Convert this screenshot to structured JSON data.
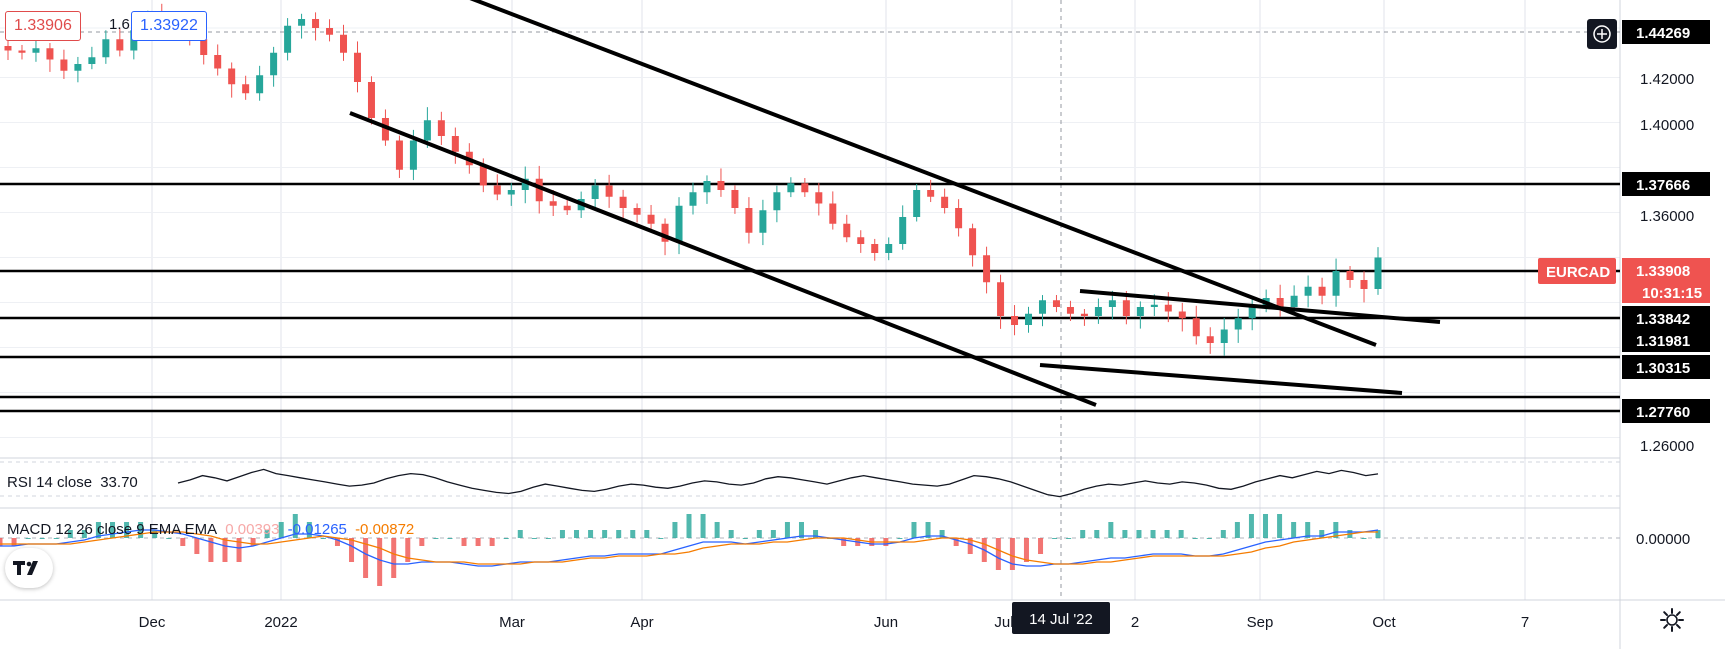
{
  "header": {
    "bid_price": "1.33906",
    "spread": "1.6",
    "ask_price": "1.33922"
  },
  "symbol": "EURCAD",
  "countdown": "10:31:15",
  "crosshair_date": "14 Jul '22",
  "rsi_legend": {
    "label": "RSI 14 close",
    "value": "33.70"
  },
  "macd_legend": {
    "label": "MACD 12 26 close 9 EMA EMA",
    "hist": "0.00393",
    "macd": "-0.01265",
    "signal": "-0.00872"
  },
  "colors": {
    "up": "#26a69a",
    "down": "#ef5350",
    "line": "#131722",
    "macd_line": "#2962ff",
    "signal_line": "#f57c00",
    "hist_pos": "#26a69a",
    "hist_neg": "#ef5350"
  },
  "chart_data": {
    "type": "candlestick",
    "instrument": "EURCAD",
    "x_tick_labels": [
      "Dec",
      "2022",
      "Mar",
      "Apr",
      "Jun",
      "Jul",
      "2",
      "Sep",
      "Oct",
      "7"
    ],
    "y_tick_labels": [
      "1.42000",
      "1.40000",
      "1.36000",
      "1.26000"
    ],
    "ylim": [
      1.25,
      1.45
    ],
    "horizontal_levels": [
      "1.44269",
      "1.37666",
      "1.33842",
      "1.31981",
      "1.30315",
      "1.27760"
    ],
    "current_price": "1.33908",
    "price_path": [
      1.432,
      1.431,
      1.433,
      1.428,
      1.423,
      1.426,
      1.429,
      1.437,
      1.432,
      1.441,
      1.447,
      1.444,
      1.44,
      1.437,
      1.43,
      1.424,
      1.417,
      1.413,
      1.421,
      1.431,
      1.443,
      1.446,
      1.442,
      1.439,
      1.431,
      1.418,
      1.402,
      1.392,
      1.379,
      1.392,
      1.401,
      1.394,
      1.387,
      1.381,
      1.372,
      1.368,
      1.37,
      1.375,
      1.365,
      1.363,
      1.361,
      1.366,
      1.372,
      1.367,
      1.362,
      1.359,
      1.355,
      1.347,
      1.363,
      1.369,
      1.374,
      1.37,
      1.362,
      1.351,
      1.361,
      1.369,
      1.373,
      1.369,
      1.364,
      1.355,
      1.349,
      1.346,
      1.342,
      1.346,
      1.358,
      1.37,
      1.367,
      1.362,
      1.353,
      1.341,
      1.329,
      1.314,
      1.31,
      1.315,
      1.321,
      1.318,
      1.315,
      1.314,
      1.318,
      1.321,
      1.314,
      1.318,
      1.319,
      1.316,
      1.313,
      1.305,
      1.302,
      1.308,
      1.313,
      1.318,
      1.322,
      1.318,
      1.323,
      1.327,
      1.323,
      1.334,
      1.33,
      1.326,
      1.34
    ],
    "rsi": [
      45,
      48,
      52,
      50,
      47,
      51,
      55,
      58,
      54,
      52,
      50,
      48,
      46,
      44,
      42,
      43,
      45,
      49,
      52,
      54,
      53,
      50,
      46,
      43,
      40,
      38,
      36,
      35,
      37,
      41,
      44,
      42,
      40,
      38,
      37,
      39,
      42,
      44,
      43,
      41,
      40,
      42,
      45,
      47,
      46,
      44,
      43,
      45,
      49,
      51,
      50,
      48,
      46,
      44,
      47,
      50,
      52,
      50,
      48,
      46,
      44,
      43,
      42,
      44,
      48,
      52,
      51,
      49,
      46,
      42,
      38,
      34,
      32,
      35,
      39,
      42,
      44,
      43,
      45,
      47,
      45,
      44,
      46,
      45,
      43,
      40,
      39,
      42,
      46,
      49,
      52,
      50,
      53,
      56,
      54,
      57,
      55,
      52,
      53.7
    ],
    "macd": [
      -0.004,
      -0.004,
      -0.003,
      -0.003,
      -0.003,
      -0.002,
      -0.001,
      0.001,
      0.002,
      0.003,
      0.004,
      0.004,
      0.003,
      0.002,
      0.0,
      -0.002,
      -0.004,
      -0.005,
      -0.004,
      -0.002,
      0.0,
      0.002,
      0.002,
      0.001,
      -0.001,
      -0.004,
      -0.008,
      -0.011,
      -0.013,
      -0.013,
      -0.012,
      -0.012,
      -0.012,
      -0.013,
      -0.014,
      -0.014,
      -0.013,
      -0.012,
      -0.012,
      -0.012,
      -0.011,
      -0.01,
      -0.009,
      -0.009,
      -0.008,
      -0.008,
      -0.008,
      -0.008,
      -0.006,
      -0.004,
      -0.002,
      -0.002,
      -0.002,
      -0.003,
      -0.002,
      -0.001,
      0.0,
      0.001,
      0.001,
      0.0,
      -0.001,
      -0.002,
      -0.003,
      -0.003,
      -0.002,
      0.0,
      0.001,
      0.001,
      -0.001,
      -0.003,
      -0.006,
      -0.01,
      -0.013,
      -0.014,
      -0.014,
      -0.013,
      -0.013,
      -0.012,
      -0.011,
      -0.01,
      -0.01,
      -0.009,
      -0.008,
      -0.008,
      -0.008,
      -0.009,
      -0.009,
      -0.008,
      -0.006,
      -0.004,
      -0.002,
      -0.001,
      0.0,
      0.001,
      0.001,
      0.003,
      0.003,
      0.003,
      0.004
    ],
    "signal": [
      -0.003,
      -0.003,
      -0.003,
      -0.003,
      -0.003,
      -0.003,
      -0.002,
      -0.001,
      0.0,
      0.001,
      0.002,
      0.003,
      0.003,
      0.003,
      0.002,
      0.001,
      -0.001,
      -0.002,
      -0.003,
      -0.003,
      -0.002,
      -0.001,
      0.0,
      0.001,
      0.0,
      -0.001,
      -0.003,
      -0.005,
      -0.008,
      -0.01,
      -0.011,
      -0.012,
      -0.012,
      -0.012,
      -0.013,
      -0.013,
      -0.013,
      -0.013,
      -0.012,
      -0.012,
      -0.012,
      -0.011,
      -0.01,
      -0.01,
      -0.009,
      -0.009,
      -0.009,
      -0.008,
      -0.008,
      -0.007,
      -0.005,
      -0.004,
      -0.003,
      -0.003,
      -0.003,
      -0.002,
      -0.002,
      -0.001,
      0.0,
      0.0,
      0.0,
      -0.001,
      -0.002,
      -0.002,
      -0.002,
      -0.002,
      -0.001,
      0.0,
      0.0,
      -0.001,
      -0.003,
      -0.006,
      -0.009,
      -0.011,
      -0.012,
      -0.013,
      -0.013,
      -0.013,
      -0.012,
      -0.012,
      -0.011,
      -0.01,
      -0.009,
      -0.009,
      -0.009,
      -0.009,
      -0.009,
      -0.009,
      -0.008,
      -0.007,
      -0.005,
      -0.004,
      -0.002,
      -0.001,
      0.0,
      0.001,
      0.002,
      0.003,
      0.003
    ]
  }
}
